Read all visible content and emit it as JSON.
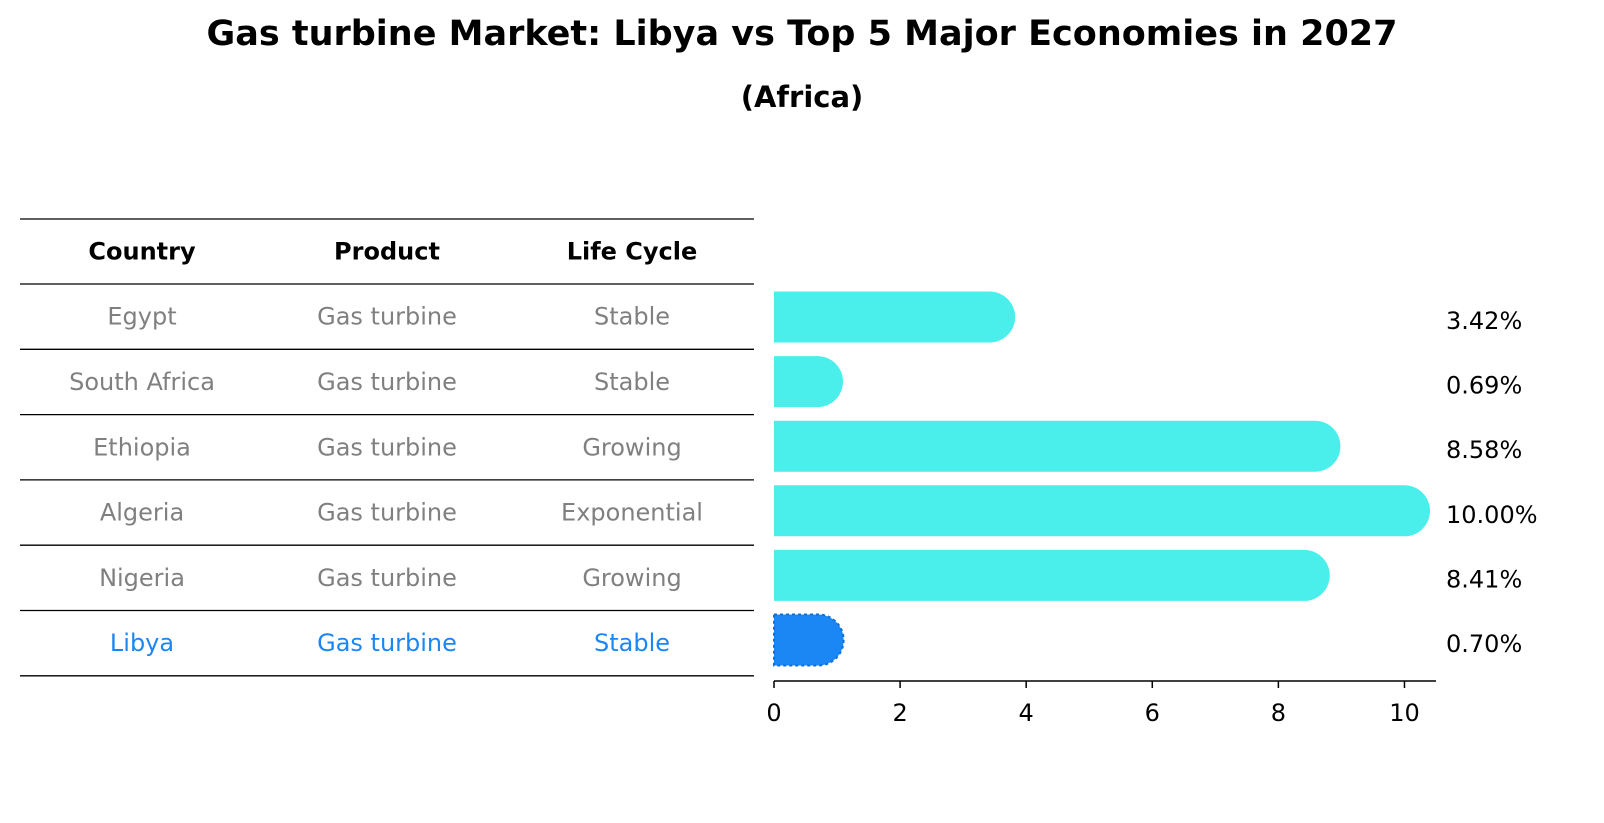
{
  "title": "Gas turbine Market: Libya vs Top 5 Major Economies in 2027",
  "subtitle": "(Africa)",
  "colors": {
    "bar": "#4aeeea",
    "highlight_bar": "#1a87f5",
    "highlight_text": "#1a87f5",
    "cell_text": "#808080",
    "line": "#000000"
  },
  "table": {
    "headers": [
      "Country",
      "Product",
      "Life Cycle"
    ],
    "rows": [
      {
        "country": "Egypt",
        "product": "Gas turbine",
        "life_cycle": "Stable",
        "highlight": false
      },
      {
        "country": "South Africa",
        "product": "Gas turbine",
        "life_cycle": "Stable",
        "highlight": false
      },
      {
        "country": "Ethiopia",
        "product": "Gas turbine",
        "life_cycle": "Growing",
        "highlight": false
      },
      {
        "country": "Algeria",
        "product": "Gas turbine",
        "life_cycle": "Exponential",
        "highlight": false
      },
      {
        "country": "Nigeria",
        "product": "Gas turbine",
        "life_cycle": "Growing",
        "highlight": false
      },
      {
        "country": "Libya",
        "product": "Gas turbine",
        "life_cycle": "Stable",
        "highlight": true
      }
    ]
  },
  "chart_data": {
    "type": "bar",
    "orientation": "horizontal",
    "categories": [
      "Egypt",
      "South Africa",
      "Ethiopia",
      "Algeria",
      "Nigeria",
      "Libya"
    ],
    "values": [
      3.42,
      0.69,
      8.58,
      10.0,
      8.41,
      0.7
    ],
    "value_labels": [
      "3.42%",
      "0.69%",
      "8.58%",
      "10.00%",
      "8.41%",
      "0.70%"
    ],
    "xlim": [
      0,
      10.5
    ],
    "xticks": [
      0,
      2,
      4,
      6,
      8,
      10
    ],
    "grid": false,
    "highlight_category": "Libya"
  }
}
